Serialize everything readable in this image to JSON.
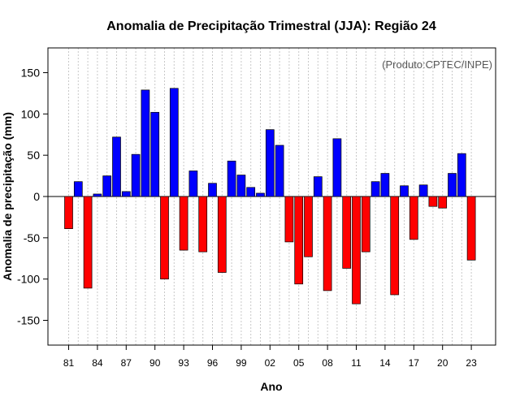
{
  "chart_data": {
    "type": "bar",
    "title": "Anomalia de Precipitação Trimestral (JJA): Região 24",
    "xlabel": "Ano",
    "ylabel": "Anomalia de precipitação (mm)",
    "credit": "(Produto:CPTEC/INPE)",
    "ylim": [
      -180,
      180
    ],
    "yticks": [
      -150,
      -100,
      -50,
      0,
      50,
      100,
      150
    ],
    "xtick_labels": [
      "81",
      "84",
      "87",
      "90",
      "93",
      "96",
      "99",
      "02",
      "05",
      "08",
      "11",
      "14",
      "17",
      "20",
      "23"
    ],
    "years": [
      1981,
      1982,
      1983,
      1984,
      1985,
      1986,
      1987,
      1988,
      1989,
      1990,
      1991,
      1992,
      1993,
      1994,
      1995,
      1996,
      1997,
      1998,
      1999,
      2000,
      2001,
      2002,
      2003,
      2004,
      2005,
      2006,
      2007,
      2008,
      2009,
      2010,
      2011,
      2012,
      2013,
      2014,
      2015,
      2016,
      2017,
      2018,
      2019,
      2020,
      2021,
      2022,
      2023
    ],
    "values": [
      -39,
      18,
      -111,
      3,
      25,
      72,
      6,
      51,
      129,
      102,
      -100,
      131,
      -65,
      31,
      -67,
      16,
      -92,
      43,
      26,
      11,
      4,
      81,
      62,
      -55,
      -106,
      -73,
      24,
      -114,
      70,
      -87,
      -130,
      -67,
      18,
      28,
      -119,
      13,
      -52,
      14,
      -12,
      -14,
      28,
      52,
      -77
    ],
    "colors": {
      "positive": "#0000ff",
      "negative": "#ff0000",
      "grid": "#c8c8c8"
    }
  }
}
